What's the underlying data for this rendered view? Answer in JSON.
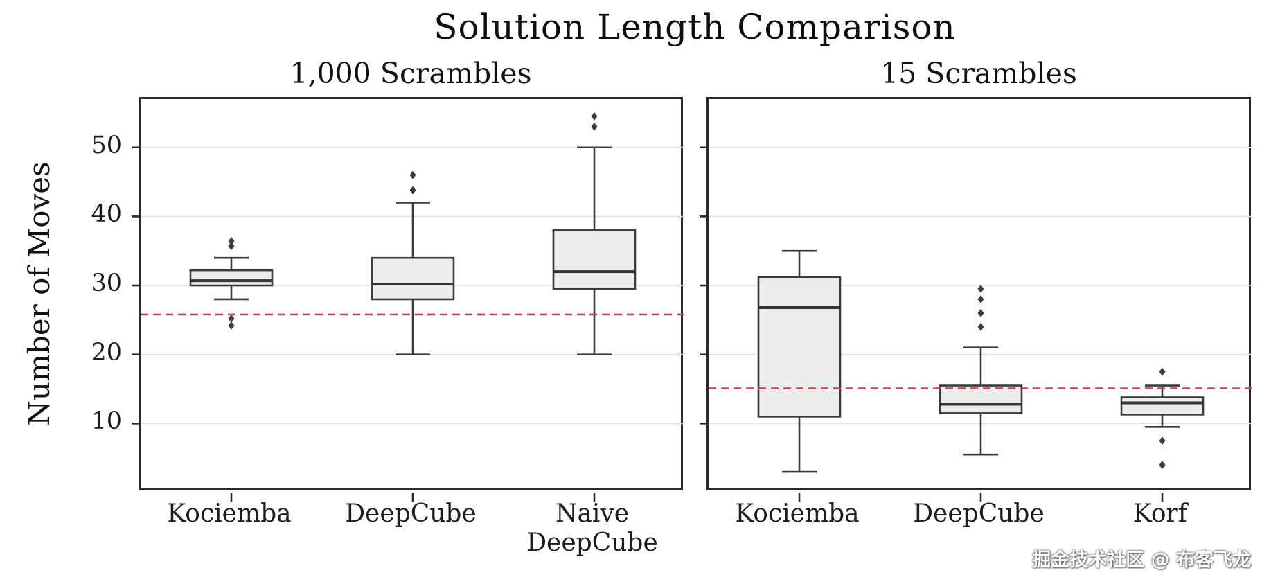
{
  "figure": {
    "title": "Solution Length Comparison",
    "ylabel": "Number of Moves",
    "watermark": "掘金技术社区 @ 布客飞龙"
  },
  "axis": {
    "ylim": [
      0,
      57
    ],
    "yticks": [
      10,
      20,
      30,
      40,
      50
    ],
    "grid": "on"
  },
  "style": {
    "box_fill": "#ececec",
    "box_edge": "#3b3b3b",
    "median_color": "#333333",
    "grid_color": "#e3e3e3",
    "dashed_line_color": "#b94a52",
    "axis_color": "#2b2b2b"
  },
  "chart_data": [
    {
      "type": "boxplot",
      "title": "1,000 Scrambles",
      "dashed_reference_line": 25.8,
      "series": [
        {
          "name": "Kociemba",
          "label_lines": [
            "Kociemba"
          ],
          "whisker_low": 28,
          "q1": 30,
          "median": 30.7,
          "q3": 32.2,
          "whisker_high": 34,
          "outliers": [
            24.2,
            25.2,
            35.7,
            36.4
          ]
        },
        {
          "name": "DeepCube",
          "label_lines": [
            "DeepCube"
          ],
          "whisker_low": 20,
          "q1": 28,
          "median": 30.2,
          "q3": 34,
          "whisker_high": 42,
          "outliers": [
            43.8,
            46
          ]
        },
        {
          "name": "Naive DeepCube",
          "label_lines": [
            "Naive",
            "DeepCube"
          ],
          "whisker_low": 20,
          "q1": 29.5,
          "median": 32,
          "q3": 38,
          "whisker_high": 50,
          "outliers": [
            53,
            54.5
          ]
        }
      ]
    },
    {
      "type": "boxplot",
      "title": "15 Scrambles",
      "dashed_reference_line": 15.1,
      "series": [
        {
          "name": "Kociemba",
          "label_lines": [
            "Kociemba"
          ],
          "whisker_low": 3,
          "q1": 11,
          "median": 26.8,
          "q3": 31.2,
          "whisker_high": 35,
          "outliers": []
        },
        {
          "name": "DeepCube",
          "label_lines": [
            "DeepCube"
          ],
          "whisker_low": 5.5,
          "q1": 11.5,
          "median": 12.8,
          "q3": 15.5,
          "whisker_high": 21,
          "outliers": [
            24,
            26,
            28,
            29.5
          ]
        },
        {
          "name": "Korf",
          "label_lines": [
            "Korf"
          ],
          "whisker_low": 9.5,
          "q1": 11.3,
          "median": 13,
          "q3": 13.8,
          "whisker_high": 15.5,
          "outliers": [
            4,
            7.5,
            17.5
          ]
        }
      ]
    }
  ]
}
